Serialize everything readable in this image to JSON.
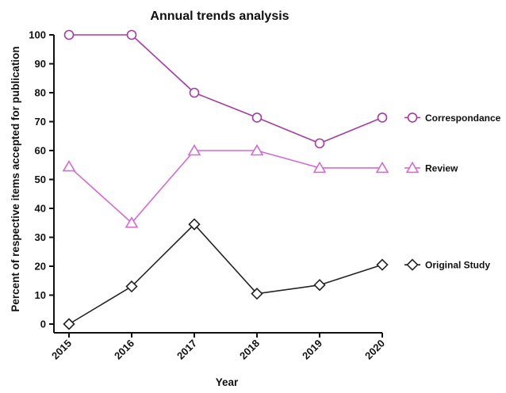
{
  "chart_data": {
    "type": "line",
    "title": "Annual trends analysis",
    "xlabel": "Year",
    "ylabel": "Percent of respective items accepted for publication",
    "x": [
      "2015",
      "2016",
      "2017",
      "2018",
      "2019",
      "2020"
    ],
    "ylim": [
      0,
      100
    ],
    "yticks": [
      0,
      10,
      20,
      30,
      40,
      50,
      60,
      70,
      80,
      90,
      100
    ],
    "grid": false,
    "legend_position": "right",
    "series": [
      {
        "name": "Correspondance",
        "values": [
          100,
          100,
          80,
          71.4,
          62.5,
          71.4
        ],
        "color": "#a63ca6",
        "marker": "circle"
      },
      {
        "name": "Review",
        "values": [
          54.5,
          35,
          60,
          60,
          54,
          54
        ],
        "color": "#d46ad4",
        "marker": "triangle"
      },
      {
        "name": "Original Study",
        "values": [
          0,
          13,
          34.5,
          10.5,
          13.5,
          20.5
        ],
        "color": "#222222",
        "marker": "diamond"
      }
    ]
  }
}
